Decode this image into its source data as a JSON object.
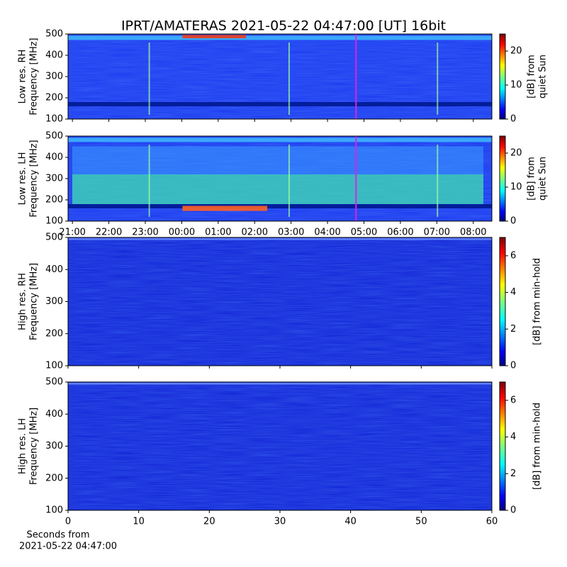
{
  "title": "IPRT/AMATERAS 2021-05-22 04:47:00 [UT]   16bit",
  "chart_data": [
    {
      "type": "spectrogram",
      "ylabel": [
        "Low res. RH",
        "Frequency [MHz]"
      ],
      "ylim": [
        100,
        500
      ],
      "yticks": [
        100,
        200,
        300,
        400,
        500
      ],
      "xlim": [
        20.88,
        32.51
      ],
      "xticks": [
        21,
        22,
        23,
        24,
        25,
        26,
        27,
        28,
        29,
        30,
        31,
        32
      ],
      "marker": 28.783,
      "marker_color": "#e020e0",
      "clim": [
        0,
        25
      ],
      "cticks": [
        0,
        10,
        20
      ],
      "clabel": [
        "[dB] from",
        "quiet Sun"
      ]
    },
    {
      "type": "spectrogram",
      "ylabel": [
        "Low res. LH",
        "Frequency [MHz]"
      ],
      "ylim": [
        100,
        500
      ],
      "yticks": [
        100,
        200,
        300,
        400,
        500
      ],
      "xlim": [
        20.88,
        32.51
      ],
      "xticks": [
        {
          "value": 21,
          "label": "21:00"
        },
        {
          "value": 22,
          "label": "22:00"
        },
        {
          "value": 23,
          "label": "23:00"
        },
        {
          "value": 24,
          "label": "00:00"
        },
        {
          "value": 25,
          "label": "01:00"
        },
        {
          "value": 26,
          "label": "02:00"
        },
        {
          "value": 27,
          "label": "03:00"
        },
        {
          "value": 28,
          "label": "04:00"
        },
        {
          "value": 29,
          "label": "05:00"
        },
        {
          "value": 30,
          "label": "06:00"
        },
        {
          "value": 31,
          "label": "07:00"
        },
        {
          "value": 32,
          "label": "08:00"
        }
      ],
      "marker": 28.783,
      "marker_color": "#e020e0",
      "clim": [
        0,
        25
      ],
      "cticks": [
        0,
        10,
        20
      ],
      "clabel": [
        "[dB] from",
        "quiet Sun"
      ]
    },
    {
      "type": "spectrogram",
      "ylabel": [
        "High res. RH",
        "Frequency [MHz]"
      ],
      "ylim": [
        100,
        500
      ],
      "yticks": [
        100,
        200,
        300,
        400,
        500
      ],
      "xlim": [
        0,
        60
      ],
      "xticks": [
        0,
        10,
        20,
        30,
        40,
        50,
        60
      ],
      "clim": [
        0,
        7
      ],
      "cticks": [
        0,
        2,
        4,
        6
      ],
      "clabel": [
        "[dB] from min-hold"
      ]
    },
    {
      "type": "spectrogram",
      "ylabel": [
        "High res. LH",
        "Frequency [MHz]"
      ],
      "ylim": [
        100,
        500
      ],
      "yticks": [
        100,
        200,
        300,
        400,
        500
      ],
      "xlim": [
        0,
        60
      ],
      "xticks": [
        0,
        10,
        20,
        30,
        40,
        50,
        60
      ],
      "xtick_labels": true,
      "clim": [
        0,
        7
      ],
      "cticks": [
        0,
        2,
        4,
        6
      ],
      "clabel": [
        "[dB] from min-hold"
      ],
      "xlabel": [
        "Seconds from",
        "2021-05-22 04:47:00"
      ]
    }
  ]
}
